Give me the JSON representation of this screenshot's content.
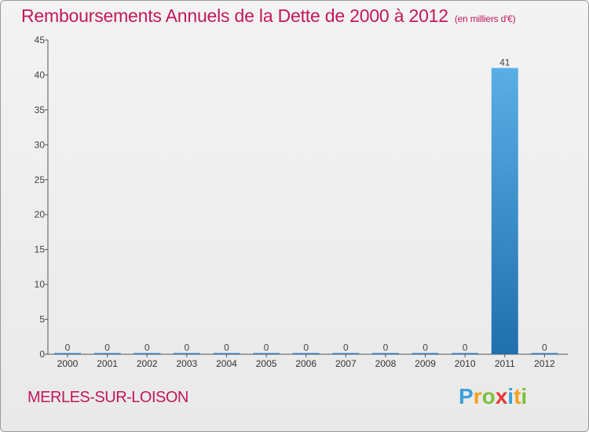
{
  "title": "Remboursements Annuels de la Dette de 2000 à 2012",
  "unit_note": "(en milliers d'€)",
  "commune": "MERLES-SUR-LOISON",
  "logo_text": "Proxiti",
  "colors": {
    "title": "#c2185b",
    "bar_top": "#5aaee6",
    "bar_bottom": "#1f6fad"
  },
  "chart_data": {
    "type": "bar",
    "title": "Remboursements Annuels de la Dette de 2000 à 2012",
    "subtitle": "(en milliers d'€)",
    "xlabel": "",
    "ylabel": "",
    "categories": [
      "2000",
      "2001",
      "2002",
      "2003",
      "2004",
      "2005",
      "2006",
      "2007",
      "2008",
      "2009",
      "2010",
      "2011",
      "2012"
    ],
    "values": [
      0,
      0,
      0,
      0,
      0,
      0,
      0,
      0,
      0,
      0,
      0,
      41,
      0
    ],
    "ylim": [
      0,
      45
    ],
    "yticks": [
      0,
      5,
      10,
      15,
      20,
      25,
      30,
      35,
      40,
      45
    ],
    "grid": false
  }
}
